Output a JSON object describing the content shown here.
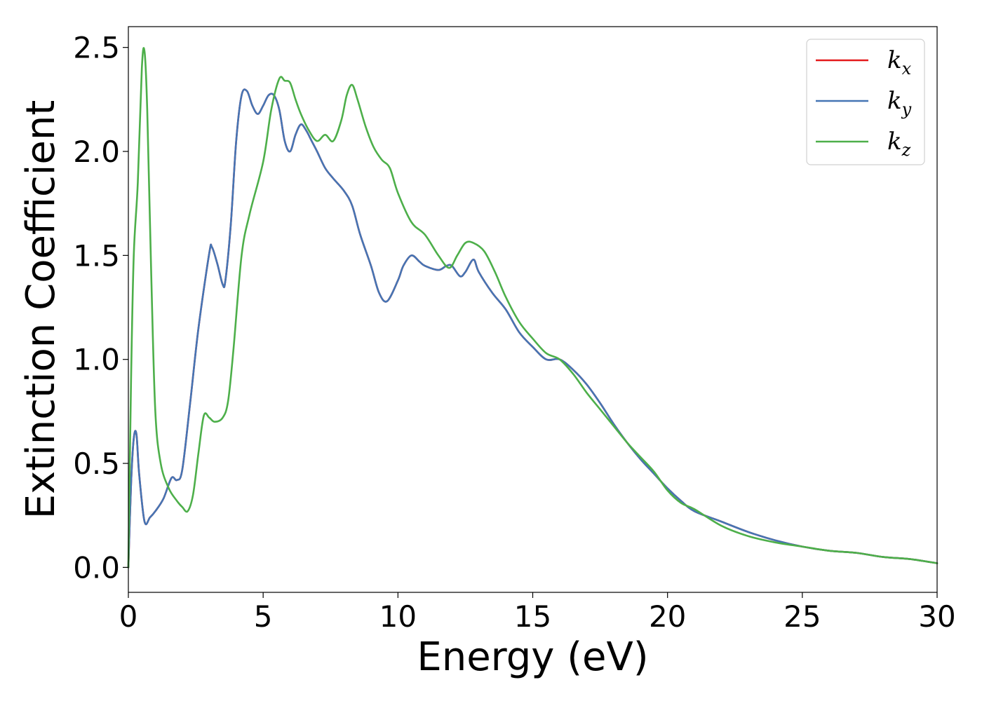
{
  "chart_data": {
    "type": "line",
    "xlabel": "Energy (eV)",
    "ylabel": "Extinction Coefficient",
    "xlim": [
      0,
      30
    ],
    "ylim": [
      -0.12,
      2.6
    ],
    "xticks": [
      0,
      5,
      10,
      15,
      20,
      25,
      30
    ],
    "yticks": [
      0.0,
      0.5,
      1.0,
      1.5,
      2.0,
      2.5
    ],
    "xtick_labels": [
      "0",
      "5",
      "10",
      "15",
      "20",
      "25",
      "30"
    ],
    "ytick_labels": [
      "0.0",
      "0.5",
      "1.0",
      "1.5",
      "2.0",
      "2.5"
    ],
    "grid": false,
    "legend_position": "top-right",
    "series": [
      {
        "name": "k_x",
        "legend_base": "k",
        "legend_sub": "x",
        "color": "#e41a1c",
        "x": [
          0,
          0.1,
          0.2,
          0.3,
          0.4,
          0.6,
          0.8,
          1.0,
          1.3,
          1.6,
          1.8,
          2.0,
          2.3,
          2.6,
          3.0,
          3.1,
          3.3,
          3.5,
          3.6,
          3.8,
          4.0,
          4.2,
          4.4,
          4.6,
          4.8,
          5.0,
          5.2,
          5.4,
          5.6,
          5.8,
          6.0,
          6.2,
          6.4,
          6.6,
          6.8,
          7.0,
          7.3,
          7.6,
          8.0,
          8.3,
          8.6,
          9.0,
          9.3,
          9.6,
          10.0,
          10.2,
          10.5,
          10.8,
          11.0,
          11.5,
          11.8,
          12.0,
          12.3,
          12.5,
          12.8,
          13.0,
          13.5,
          14.0,
          14.5,
          15.0,
          15.5,
          16.0,
          16.5,
          17.0,
          17.5,
          18.0,
          18.5,
          19.0,
          19.5,
          20.0,
          20.5,
          21.0,
          22.0,
          23.0,
          24.0,
          25.0,
          26.0,
          27.0,
          28.0,
          29.0,
          30.0
        ],
        "y": [
          0.0,
          0.4,
          0.62,
          0.64,
          0.45,
          0.22,
          0.24,
          0.27,
          0.33,
          0.43,
          0.42,
          0.47,
          0.8,
          1.15,
          1.51,
          1.54,
          1.46,
          1.36,
          1.38,
          1.65,
          2.05,
          2.27,
          2.29,
          2.22,
          2.18,
          2.22,
          2.27,
          2.27,
          2.2,
          2.05,
          2.0,
          2.08,
          2.13,
          2.1,
          2.05,
          2.0,
          1.92,
          1.87,
          1.81,
          1.74,
          1.6,
          1.45,
          1.32,
          1.28,
          1.38,
          1.45,
          1.5,
          1.47,
          1.45,
          1.43,
          1.45,
          1.45,
          1.4,
          1.42,
          1.48,
          1.42,
          1.32,
          1.24,
          1.13,
          1.06,
          1.0,
          1.0,
          0.95,
          0.88,
          0.79,
          0.69,
          0.6,
          0.52,
          0.45,
          0.38,
          0.32,
          0.27,
          0.22,
          0.17,
          0.13,
          0.1,
          0.08,
          0.07,
          0.05,
          0.04,
          0.02
        ]
      },
      {
        "name": "k_y",
        "legend_base": "k",
        "legend_sub": "y",
        "color": "#4575b4",
        "x": [
          0,
          0.1,
          0.2,
          0.3,
          0.4,
          0.6,
          0.8,
          1.0,
          1.3,
          1.6,
          1.8,
          2.0,
          2.3,
          2.6,
          3.0,
          3.1,
          3.3,
          3.5,
          3.6,
          3.8,
          4.0,
          4.2,
          4.4,
          4.6,
          4.8,
          5.0,
          5.2,
          5.4,
          5.6,
          5.8,
          6.0,
          6.2,
          6.4,
          6.6,
          6.8,
          7.0,
          7.3,
          7.6,
          8.0,
          8.3,
          8.6,
          9.0,
          9.3,
          9.6,
          10.0,
          10.2,
          10.5,
          10.8,
          11.0,
          11.5,
          11.8,
          12.0,
          12.3,
          12.5,
          12.8,
          13.0,
          13.5,
          14.0,
          14.5,
          15.0,
          15.5,
          16.0,
          16.5,
          17.0,
          17.5,
          18.0,
          18.5,
          19.0,
          19.5,
          20.0,
          20.5,
          21.0,
          22.0,
          23.0,
          24.0,
          25.0,
          26.0,
          27.0,
          28.0,
          29.0,
          30.0
        ],
        "y": [
          0.0,
          0.4,
          0.62,
          0.64,
          0.45,
          0.22,
          0.24,
          0.27,
          0.33,
          0.43,
          0.42,
          0.47,
          0.8,
          1.15,
          1.51,
          1.54,
          1.46,
          1.36,
          1.38,
          1.65,
          2.05,
          2.27,
          2.29,
          2.22,
          2.18,
          2.22,
          2.27,
          2.27,
          2.2,
          2.05,
          2.0,
          2.08,
          2.13,
          2.1,
          2.05,
          2.0,
          1.92,
          1.87,
          1.81,
          1.74,
          1.6,
          1.45,
          1.32,
          1.28,
          1.38,
          1.45,
          1.5,
          1.47,
          1.45,
          1.43,
          1.45,
          1.45,
          1.4,
          1.42,
          1.48,
          1.42,
          1.32,
          1.24,
          1.13,
          1.06,
          1.0,
          1.0,
          0.95,
          0.88,
          0.79,
          0.69,
          0.6,
          0.52,
          0.45,
          0.38,
          0.32,
          0.27,
          0.22,
          0.17,
          0.13,
          0.1,
          0.08,
          0.07,
          0.05,
          0.04,
          0.02
        ]
      },
      {
        "name": "k_z",
        "legend_base": "k",
        "legend_sub": "z",
        "color": "#4daf4a",
        "x": [
          0,
          0.1,
          0.2,
          0.35,
          0.5,
          0.6,
          0.7,
          0.85,
          1.0,
          1.2,
          1.5,
          1.8,
          2.0,
          2.2,
          2.4,
          2.6,
          2.8,
          3.0,
          3.2,
          3.5,
          3.7,
          3.9,
          4.2,
          4.5,
          5.0,
          5.3,
          5.6,
          5.8,
          6.0,
          6.2,
          6.4,
          6.7,
          7.0,
          7.3,
          7.6,
          7.9,
          8.1,
          8.3,
          8.5,
          8.8,
          9.1,
          9.4,
          9.7,
          10.0,
          10.5,
          11.0,
          11.5,
          11.9,
          12.2,
          12.5,
          12.8,
          13.2,
          13.6,
          14.0,
          14.5,
          15.0,
          15.5,
          16.0,
          16.5,
          17.0,
          17.5,
          18.0,
          18.5,
          19.0,
          19.5,
          20.0,
          20.5,
          21.0,
          22.0,
          23.0,
          24.0,
          25.0,
          26.0,
          27.0,
          28.0,
          29.0,
          30.0
        ],
        "y": [
          0.0,
          0.9,
          1.5,
          1.85,
          2.4,
          2.48,
          2.2,
          1.4,
          0.75,
          0.5,
          0.38,
          0.32,
          0.29,
          0.27,
          0.35,
          0.55,
          0.73,
          0.72,
          0.7,
          0.72,
          0.8,
          1.05,
          1.5,
          1.7,
          1.95,
          2.2,
          2.35,
          2.34,
          2.33,
          2.25,
          2.18,
          2.1,
          2.05,
          2.08,
          2.05,
          2.15,
          2.27,
          2.32,
          2.25,
          2.12,
          2.02,
          1.96,
          1.92,
          1.8,
          1.66,
          1.6,
          1.5,
          1.44,
          1.5,
          1.56,
          1.56,
          1.52,
          1.42,
          1.3,
          1.18,
          1.1,
          1.03,
          1.0,
          0.93,
          0.84,
          0.76,
          0.68,
          0.6,
          0.53,
          0.46,
          0.37,
          0.31,
          0.28,
          0.2,
          0.15,
          0.12,
          0.1,
          0.08,
          0.07,
          0.05,
          0.04,
          0.02
        ]
      }
    ]
  }
}
